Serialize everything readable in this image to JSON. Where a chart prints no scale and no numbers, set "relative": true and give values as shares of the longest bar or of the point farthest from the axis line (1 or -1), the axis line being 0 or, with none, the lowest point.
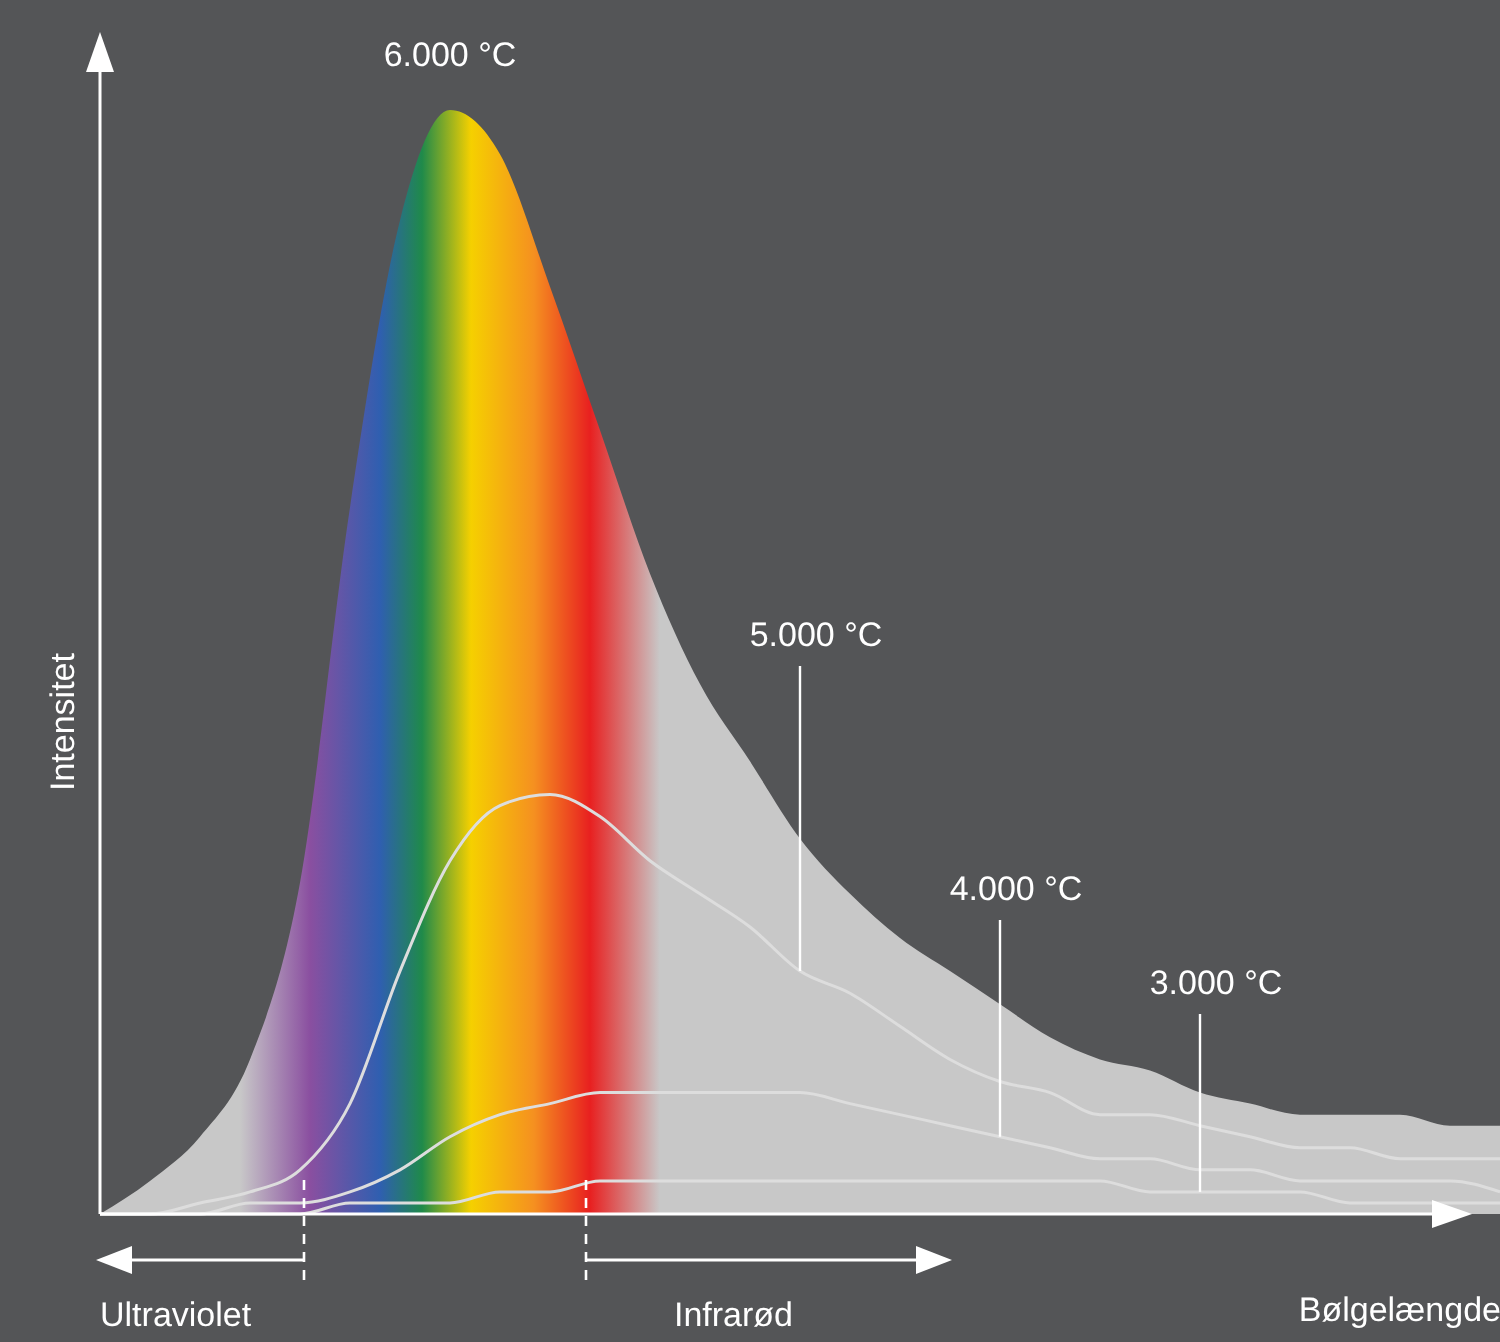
{
  "chart_data": {
    "type": "line",
    "relative": true,
    "xlabel": "Bølgelængde",
    "ylabel": "Intensitet",
    "categories": [
      null,
      null,
      null,
      null,
      null,
      null,
      null,
      null,
      null,
      null,
      null,
      null,
      null,
      null,
      null,
      null,
      null,
      null,
      null,
      null,
      null,
      null,
      null,
      null,
      null,
      null,
      null,
      null,
      null
    ],
    "series": [
      {
        "name": "6.000 °C",
        "type": "area",
        "color": "#c8c8c8",
        "values": [
          0,
          0.03,
          0.07,
          0.14,
          0.3,
          0.64,
          0.9,
          1,
          0.96,
          0.84,
          0.71,
          0.58,
          0.48,
          0.41,
          0.34,
          0.29,
          0.25,
          0.22,
          0.19,
          0.16,
          0.14,
          0.13,
          0.11,
          0.1,
          0.09,
          0.09,
          0.09,
          0.08,
          0.08
        ]
      },
      {
        "name": "5.000 °C",
        "color": "#dddddd",
        "values": [
          0,
          0,
          0.01,
          0.02,
          0.04,
          0.1,
          0.22,
          0.32,
          0.37,
          0.38,
          0.36,
          0.32,
          0.29,
          0.26,
          0.22,
          0.2,
          0.17,
          0.14,
          0.12,
          0.11,
          0.09,
          0.09,
          0.08,
          0.07,
          0.06,
          0.06,
          0.05,
          0.05,
          0.05
        ]
      },
      {
        "name": "4.000 °C",
        "color": "#dddddd",
        "values": [
          0,
          0,
          0,
          0.01,
          0.01,
          0.02,
          0.04,
          0.07,
          0.09,
          0.1,
          0.11,
          0.11,
          0.11,
          0.11,
          0.11,
          0.1,
          0.09,
          0.08,
          0.07,
          0.06,
          0.05,
          0.05,
          0.04,
          0.04,
          0.03,
          0.03,
          0.03,
          0.03,
          0.02
        ]
      },
      {
        "name": "3.000 °C",
        "color": "#dddddd",
        "values": [
          0,
          0,
          0,
          0,
          0,
          0.01,
          0.01,
          0.01,
          0.02,
          0.02,
          0.03,
          0.03,
          0.03,
          0.03,
          0.03,
          0.03,
          0.03,
          0.03,
          0.03,
          0.03,
          0.03,
          0.02,
          0.02,
          0.02,
          0.02,
          0.01,
          0.01,
          0.01,
          0.01
        ]
      }
    ],
    "annotations": [
      "Ultraviolet",
      "Infrarød"
    ]
  }
}
